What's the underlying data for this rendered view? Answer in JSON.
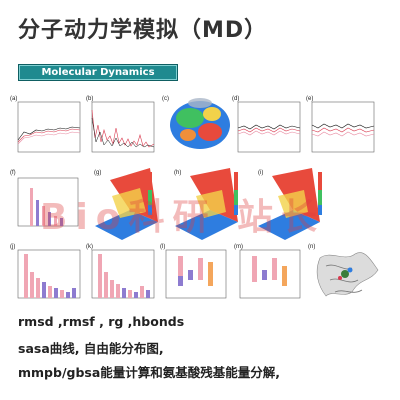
{
  "header": {
    "title": "分子动力学模拟（MD）",
    "subtitle": "Molecular Dynamics"
  },
  "figure": {
    "panel_labels": [
      "(a)",
      "(b)",
      "(c)",
      "(d)",
      "(e)",
      "(f)",
      "(g)",
      "(h)",
      "(i)",
      "(j)",
      "(k)",
      "(l)",
      "(m)",
      "(n)"
    ]
  },
  "watermark": "Bio科研 站长",
  "notes": {
    "line1": "rmsd ,rmsf , rg        ,hbonds",
    "line2": "sasa曲线, 自由能分布图,",
    "line3": "mmpb/gbsa能量计算和氨基酸残基能量分解,"
  },
  "colors": {
    "accent": "#1f8a8f",
    "series_black": "#111111",
    "series_red": "#d9394e",
    "series_pink": "#e88aa1",
    "bar_pink": "#f0a6b4",
    "bar_purple": "#8d7bd0",
    "bar_orange": "#f4a65c"
  }
}
